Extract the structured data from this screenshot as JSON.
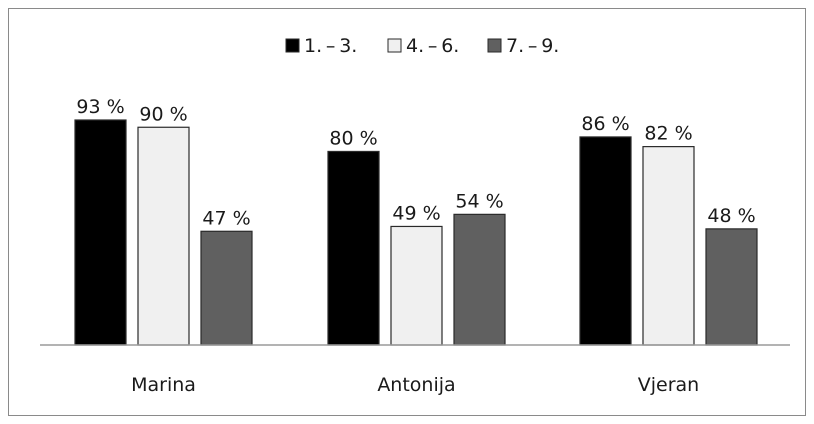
{
  "chart_data": {
    "type": "bar",
    "categories": [
      "Marina",
      "Antonija",
      "Vjeran"
    ],
    "series": [
      {
        "name": "1. – 3.",
        "values": [
          93,
          80,
          86
        ],
        "color": "#000000"
      },
      {
        "name": "4. – 6.",
        "values": [
          90,
          49,
          82
        ],
        "color": "#f0f0f0"
      },
      {
        "name": "7. – 9.",
        "values": [
          47,
          54,
          48
        ],
        "color": "#606060"
      }
    ],
    "value_suffix": " %",
    "title": "",
    "xlabel": "",
    "ylabel": "",
    "ylim": [
      0,
      100
    ],
    "grid": false,
    "legend_position": "top-center"
  }
}
